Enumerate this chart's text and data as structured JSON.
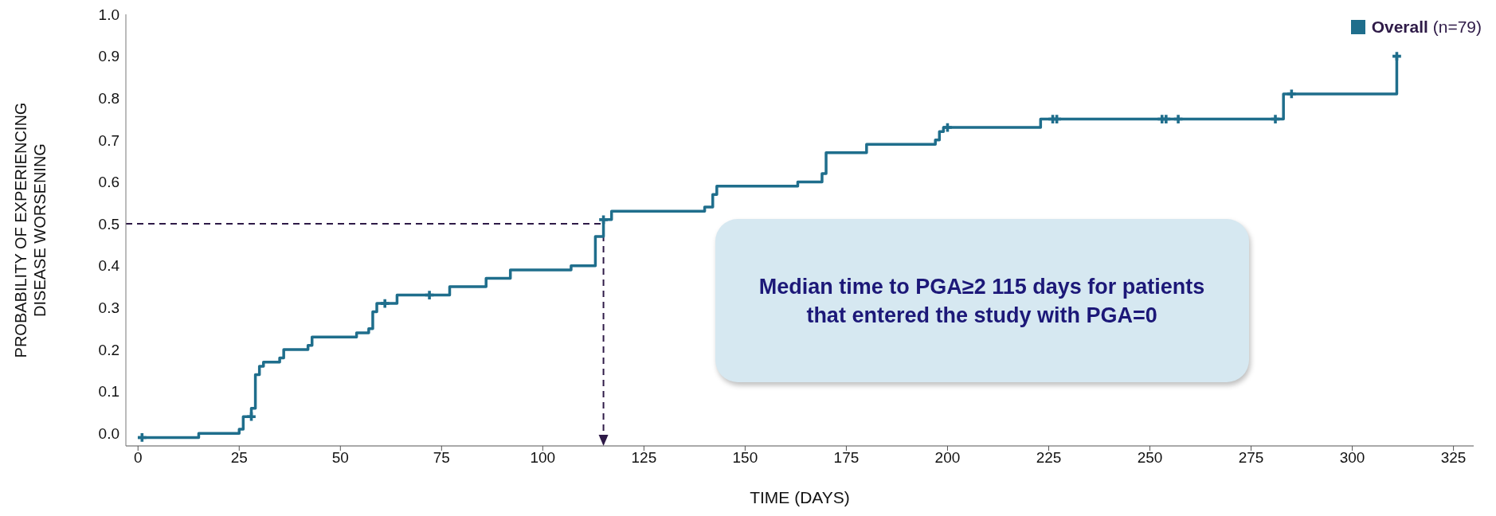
{
  "chart_data": {
    "type": "step",
    "xlabel": "TIME (DAYS)",
    "ylabel": "PROBABILITY OF EXPERIENCING DISEASE WORSENING",
    "xlim": [
      -3,
      330
    ],
    "xticks": [
      0,
      25,
      50,
      75,
      100,
      125,
      150,
      175,
      200,
      225,
      250,
      275,
      300,
      325
    ],
    "ylim": [
      -0.03,
      1.0
    ],
    "yticks": [
      {
        "value": 0,
        "label": "0.0"
      },
      {
        "value": 0.1,
        "label": "0.1"
      },
      {
        "value": 0.2,
        "label": "0.2"
      },
      {
        "value": 0.3,
        "label": "0.3"
      },
      {
        "value": 0.4,
        "label": "0.4"
      },
      {
        "value": 0.5,
        "label": "0.5"
      },
      {
        "value": 0.6,
        "label": "0.6"
      },
      {
        "value": 0.7,
        "label": "0.7"
      },
      {
        "value": 0.8,
        "label": "0.8"
      },
      {
        "value": 0.9,
        "label": "0.9"
      },
      {
        "value": 1.0,
        "label": "1.0"
      }
    ],
    "grid": false,
    "legend": "top right",
    "series": [
      {
        "name": "Overall (n=79)",
        "color": "#1f6e8c",
        "x": [
          0,
          15,
          25,
          26,
          28,
          29,
          30,
          31,
          35,
          36,
          42,
          43,
          54,
          57,
          58,
          59,
          64,
          77,
          86,
          92,
          107,
          113,
          115,
          117,
          140,
          142,
          143,
          163,
          169,
          170,
          180,
          197,
          198,
          199,
          223,
          283,
          311
        ],
        "values": [
          -0.01,
          0,
          0.01,
          0.04,
          0.06,
          0.14,
          0.16,
          0.17,
          0.18,
          0.2,
          0.21,
          0.23,
          0.24,
          0.25,
          0.29,
          0.31,
          0.33,
          0.35,
          0.37,
          0.39,
          0.4,
          0.47,
          0.51,
          0.53,
          0.54,
          0.57,
          0.59,
          0.6,
          0.62,
          0.67,
          0.69,
          0.7,
          0.72,
          0.73,
          0.75,
          0.81,
          0.9
        ]
      },
      {
        "type": "scatter",
        "color": "#1f6e8c",
        "marker": "cross",
        "x": [
          1,
          28,
          61,
          72,
          115,
          200,
          226,
          227,
          253,
          254,
          257,
          281,
          285,
          311
        ],
        "values": [
          -0.01,
          0.04,
          0.31,
          0.33,
          0.51,
          0.73,
          0.75,
          0.75,
          0.75,
          0.75,
          0.75,
          0.75,
          0.81,
          0.9
        ]
      }
    ],
    "ref_lines": [
      {
        "axis": "y",
        "value": 0.5,
        "color": "#2e1a47",
        "line_style": "dashed"
      },
      {
        "axis": "x",
        "value": 115,
        "color": "#2e1a47",
        "line_style": "dashed"
      }
    ],
    "annotations": [
      "Median time to PGA≥2 115 days for patients that entered the study with PGA=0"
    ]
  }
}
